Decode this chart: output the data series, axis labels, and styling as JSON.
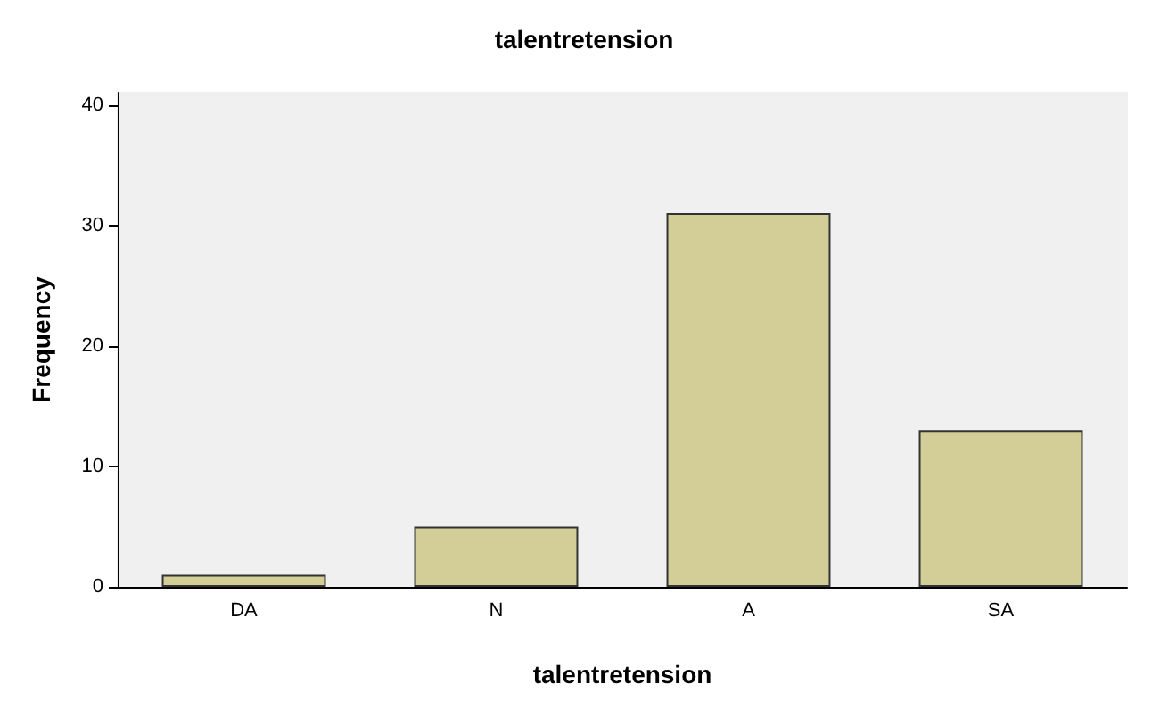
{
  "chart_data": {
    "type": "bar",
    "title": "talentretension",
    "xlabel": "talentretension",
    "ylabel": "Frequency",
    "categories": [
      "DA",
      "N",
      "A",
      "SA"
    ],
    "values": [
      1,
      5,
      31,
      13
    ],
    "color": "#d3ce97",
    "ylim": [
      0,
      41
    ],
    "yticks": [
      0,
      10,
      20,
      30,
      40
    ],
    "grid": false
  }
}
